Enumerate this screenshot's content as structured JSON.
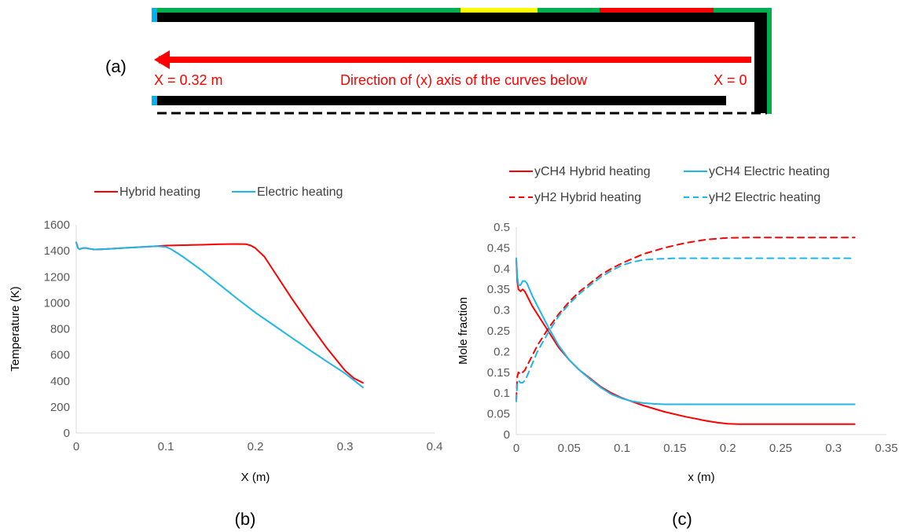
{
  "schematic": {
    "panel_label": "(a)",
    "left_label": "X = 0.32 m",
    "center_label": "Direction of (x) axis of the curves below",
    "right_label": "X = 0",
    "colors": {
      "wall": "#000000",
      "arrow": "#ff0000",
      "green": "#00b050",
      "yellow": "#ffff00",
      "red": "#ff0000",
      "blue": "#00b0f0"
    }
  },
  "panels": {
    "b_label": "(b)",
    "c_label": "(c)"
  },
  "chart_data": [
    {
      "id": "b",
      "type": "line",
      "title": "",
      "xlabel": "X (m)",
      "ylabel": "Temperature (K)",
      "xlim": [
        0,
        0.4
      ],
      "ylim": [
        0,
        1600
      ],
      "xticks": [
        "0",
        "0.1",
        "0.2",
        "0.3",
        "0.4"
      ],
      "yticks": [
        "0",
        "200",
        "400",
        "600",
        "800",
        "1000",
        "1200",
        "1400",
        "1600"
      ],
      "grid": false,
      "legend": "top",
      "series": [
        {
          "name": "Hybrid heating",
          "color": "#ff0000",
          "dash": "solid",
          "x": [
            0,
            0.002,
            0.004,
            0.007,
            0.01,
            0.015,
            0.02,
            0.03,
            0.05,
            0.07,
            0.09,
            0.1,
            0.12,
            0.14,
            0.16,
            0.18,
            0.19,
            0.195,
            0.2,
            0.21,
            0.22,
            0.24,
            0.26,
            0.28,
            0.3,
            0.31,
            0.32
          ],
          "y": [
            1465,
            1420,
            1412,
            1420,
            1422,
            1415,
            1410,
            1412,
            1420,
            1428,
            1435,
            1440,
            1443,
            1446,
            1450,
            1452,
            1450,
            1440,
            1420,
            1355,
            1250,
            1040,
            840,
            650,
            480,
            420,
            385
          ]
        },
        {
          "name": "Electric heating",
          "color": "#1fb6e8",
          "dash": "solid",
          "x": [
            0,
            0.002,
            0.004,
            0.007,
            0.01,
            0.015,
            0.02,
            0.03,
            0.05,
            0.07,
            0.09,
            0.1,
            0.105,
            0.11,
            0.12,
            0.14,
            0.16,
            0.18,
            0.2,
            0.22,
            0.24,
            0.26,
            0.28,
            0.3,
            0.31,
            0.32
          ],
          "y": [
            1465,
            1420,
            1412,
            1420,
            1422,
            1415,
            1410,
            1412,
            1420,
            1428,
            1435,
            1430,
            1415,
            1395,
            1350,
            1250,
            1140,
            1030,
            925,
            830,
            735,
            640,
            548,
            458,
            405,
            350
          ]
        }
      ]
    },
    {
      "id": "c",
      "type": "line",
      "title": "",
      "xlabel": "x (m)",
      "ylabel": "Mole fraction",
      "xlim": [
        0,
        0.35
      ],
      "ylim": [
        0,
        0.5
      ],
      "xticks": [
        "0",
        "0.05",
        "0.1",
        "0.15",
        "0.2",
        "0.25",
        "0.3",
        "0.35"
      ],
      "yticks": [
        "0",
        "0.05",
        "0.1",
        "0.15",
        "0.2",
        "0.25",
        "0.3",
        "0.35",
        "0.4",
        "0.45",
        "0.5"
      ],
      "grid": false,
      "legend": "top",
      "series": [
        {
          "name": "yCH4 Hybrid heating",
          "color": "#ff0000",
          "dash": "solid",
          "x": [
            0,
            0.001,
            0.002,
            0.004,
            0.006,
            0.008,
            0.01,
            0.015,
            0.02,
            0.03,
            0.04,
            0.05,
            0.06,
            0.07,
            0.08,
            0.09,
            0.1,
            0.12,
            0.14,
            0.16,
            0.18,
            0.19,
            0.2,
            0.21,
            0.22,
            0.25,
            0.3,
            0.32
          ],
          "y": [
            0.42,
            0.37,
            0.35,
            0.345,
            0.35,
            0.345,
            0.335,
            0.31,
            0.29,
            0.25,
            0.21,
            0.18,
            0.155,
            0.135,
            0.115,
            0.1,
            0.088,
            0.07,
            0.055,
            0.043,
            0.033,
            0.029,
            0.026,
            0.025,
            0.025,
            0.025,
            0.025,
            0.025
          ]
        },
        {
          "name": "yCH4 Electric heating",
          "color": "#1fb6e8",
          "dash": "solid",
          "x": [
            0,
            0.001,
            0.002,
            0.004,
            0.006,
            0.008,
            0.01,
            0.015,
            0.02,
            0.03,
            0.04,
            0.05,
            0.06,
            0.07,
            0.08,
            0.09,
            0.1,
            0.11,
            0.12,
            0.13,
            0.14,
            0.15,
            0.2,
            0.25,
            0.3,
            0.32
          ],
          "y": [
            0.425,
            0.38,
            0.36,
            0.36,
            0.37,
            0.37,
            0.365,
            0.335,
            0.31,
            0.26,
            0.215,
            0.18,
            0.155,
            0.133,
            0.113,
            0.097,
            0.087,
            0.08,
            0.076,
            0.074,
            0.073,
            0.073,
            0.073,
            0.073,
            0.073,
            0.073
          ]
        },
        {
          "name": "yH2 Hybrid heating",
          "color": "#ff0000",
          "dash": "dashed",
          "x": [
            0,
            0.001,
            0.002,
            0.004,
            0.006,
            0.008,
            0.01,
            0.015,
            0.02,
            0.03,
            0.04,
            0.05,
            0.06,
            0.07,
            0.08,
            0.09,
            0.1,
            0.12,
            0.14,
            0.16,
            0.18,
            0.2,
            0.22,
            0.25,
            0.3,
            0.32
          ],
          "y": [
            0.085,
            0.14,
            0.15,
            0.145,
            0.15,
            0.155,
            0.165,
            0.19,
            0.215,
            0.255,
            0.29,
            0.32,
            0.345,
            0.365,
            0.385,
            0.4,
            0.413,
            0.435,
            0.45,
            0.462,
            0.47,
            0.474,
            0.475,
            0.475,
            0.475,
            0.475
          ]
        },
        {
          "name": "yH2  Electric heating",
          "color": "#1fb6e8",
          "dash": "dashed",
          "x": [
            0,
            0.001,
            0.002,
            0.004,
            0.006,
            0.008,
            0.01,
            0.015,
            0.02,
            0.03,
            0.04,
            0.05,
            0.06,
            0.07,
            0.08,
            0.09,
            0.1,
            0.11,
            0.12,
            0.13,
            0.15,
            0.2,
            0.25,
            0.3,
            0.32
          ],
          "y": [
            0.08,
            0.125,
            0.13,
            0.125,
            0.125,
            0.13,
            0.14,
            0.17,
            0.2,
            0.245,
            0.285,
            0.315,
            0.34,
            0.36,
            0.38,
            0.395,
            0.408,
            0.416,
            0.421,
            0.423,
            0.425,
            0.425,
            0.425,
            0.425,
            0.425
          ]
        }
      ]
    }
  ]
}
